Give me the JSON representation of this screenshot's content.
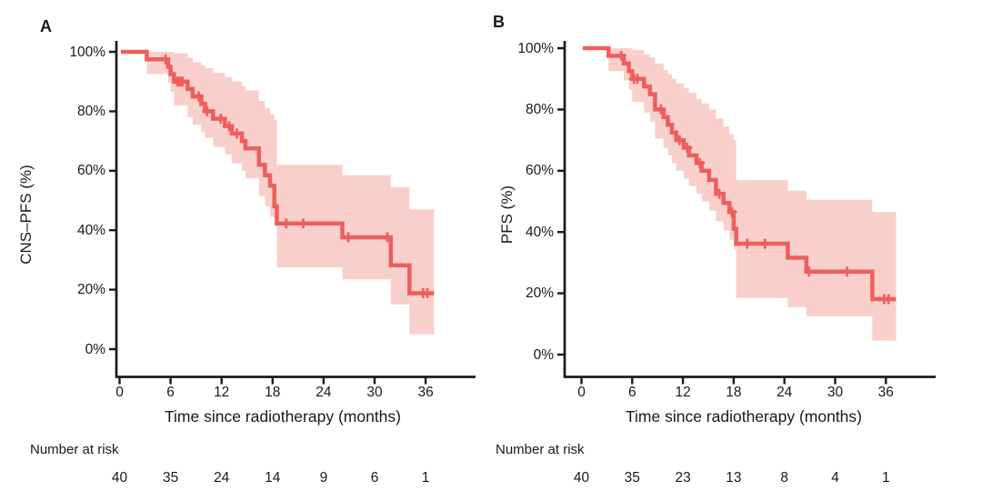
{
  "figure": {
    "background": "#ffffff",
    "text_color": "#1a1a1a",
    "panels": [
      {
        "letter": "A"
      },
      {
        "letter": "B"
      }
    ]
  },
  "colors": {
    "curve": "#ee5e5b",
    "confidence_band": "#f9cfcc",
    "axis": "#1a1a1a"
  },
  "chart_data": [
    {
      "type": "line",
      "subtype": "kaplan-meier-step",
      "panel": "A",
      "ylabel": "CNS–PFS (%)",
      "xlabel": "Time since radiotherapy (months)",
      "xlim": [
        0,
        42
      ],
      "ylim": [
        0,
        100
      ],
      "x_ticks": [
        0,
        6,
        12,
        18,
        24,
        30,
        36
      ],
      "y_tick_values": [
        100,
        80,
        60,
        40,
        20,
        0
      ],
      "y_tick_labels": [
        "100%",
        "80%",
        "60%",
        "40%",
        "20%",
        "0%"
      ],
      "grid": false,
      "legend": "none",
      "series": [
        {
          "name": "CNS-PFS",
          "color": "#ee5e5b",
          "band_color": "#f9cfcc",
          "steps": [
            [
              0.15,
              100
            ],
            [
              3.2,
              100
            ],
            [
              3.2,
              97.5
            ],
            [
              5.7,
              97.5
            ],
            [
              5.7,
              95
            ],
            [
              6.0,
              95
            ],
            [
              6.0,
              92.5
            ],
            [
              6.4,
              92.5
            ],
            [
              6.4,
              90
            ],
            [
              8.0,
              90
            ],
            [
              8.0,
              87.5
            ],
            [
              8.6,
              87.5
            ],
            [
              8.6,
              85
            ],
            [
              9.6,
              85
            ],
            [
              9.6,
              82.5
            ],
            [
              10.05,
              82.5
            ],
            [
              10.05,
              80
            ],
            [
              11.0,
              80
            ],
            [
              11.0,
              77.5
            ],
            [
              12.4,
              77.5
            ],
            [
              12.4,
              75
            ],
            [
              13.2,
              75
            ],
            [
              13.2,
              72.5
            ],
            [
              14.4,
              72.5
            ],
            [
              14.4,
              70
            ],
            [
              14.8,
              70
            ],
            [
              14.8,
              67.5
            ],
            [
              16.4,
              67.5
            ],
            [
              16.4,
              62
            ],
            [
              17.1,
              62
            ],
            [
              17.1,
              58.5
            ],
            [
              17.7,
              58.5
            ],
            [
              17.7,
              55
            ],
            [
              18.2,
              55
            ],
            [
              18.2,
              48
            ],
            [
              18.5,
              48
            ],
            [
              18.5,
              42.3
            ],
            [
              26.2,
              42.3
            ],
            [
              26.2,
              37.6
            ],
            [
              31.9,
              37.6
            ],
            [
              31.9,
              28.2
            ],
            [
              34.1,
              28.2
            ],
            [
              34.1,
              18.8
            ],
            [
              37.0,
              18.8
            ]
          ],
          "censor_marks": [
            [
              5.4,
              97.5
            ],
            [
              6.8,
              90
            ],
            [
              7.1,
              90
            ],
            [
              7.4,
              90
            ],
            [
              9.3,
              85
            ],
            [
              10.3,
              80
            ],
            [
              11.9,
              77.5
            ],
            [
              12.9,
              75
            ],
            [
              13.8,
              72.5
            ],
            [
              19.6,
              42.3
            ],
            [
              21.6,
              42.3
            ],
            [
              26.9,
              37.6
            ],
            [
              31.5,
              37.6
            ],
            [
              35.7,
              18.8
            ],
            [
              36.2,
              18.8
            ]
          ],
          "ci_band": [
            [
              0.15,
              100,
              100
            ],
            [
              3.2,
              92.5,
              100
            ],
            [
              5.7,
              89.5,
              100
            ],
            [
              6.0,
              86.5,
              100
            ],
            [
              6.4,
              82,
              99.5
            ],
            [
              8.0,
              78,
              98
            ],
            [
              8.6,
              75.5,
              96.5
            ],
            [
              9.6,
              73,
              95.5
            ],
            [
              10.05,
              71,
              94.5
            ],
            [
              11.0,
              68,
              93
            ],
            [
              12.4,
              65.5,
              91.5
            ],
            [
              13.2,
              62.5,
              90
            ],
            [
              14.4,
              60,
              88.5
            ],
            [
              14.8,
              57.5,
              87
            ],
            [
              16.4,
              51.5,
              83.5
            ],
            [
              17.1,
              48,
              81
            ],
            [
              17.7,
              44.5,
              79
            ],
            [
              18.2,
              41.5,
              77
            ],
            [
              18.5,
              27.5,
              62
            ],
            [
              26.2,
              23.5,
              58.5
            ],
            [
              31.9,
              15,
              54.5
            ],
            [
              34.1,
              5,
              47
            ],
            [
              37.0,
              5,
              47
            ]
          ]
        }
      ],
      "number_at_risk": {
        "label": "Number at risk",
        "times": [
          0,
          6,
          12,
          18,
          24,
          30,
          36
        ],
        "counts": [
          "40",
          "35",
          "24",
          "14",
          "9",
          "6",
          "1"
        ]
      }
    },
    {
      "type": "line",
      "subtype": "kaplan-meier-step",
      "panel": "B",
      "ylabel": "PFS (%)",
      "xlabel": "Time since radiotherapy (months)",
      "xlim": [
        0,
        42
      ],
      "ylim": [
        0,
        100
      ],
      "x_ticks": [
        0,
        6,
        12,
        18,
        24,
        30,
        36
      ],
      "y_tick_values": [
        100,
        80,
        60,
        40,
        20,
        0
      ],
      "y_tick_labels": [
        "100%",
        "80%",
        "60%",
        "40%",
        "20%",
        "0%"
      ],
      "grid": false,
      "legend": "none",
      "series": [
        {
          "name": "PFS",
          "color": "#ee5e5b",
          "band_color": "#f9cfcc",
          "steps": [
            [
              0.15,
              100
            ],
            [
              3.2,
              100
            ],
            [
              3.2,
              97.5
            ],
            [
              5.0,
              97.5
            ],
            [
              5.0,
              95
            ],
            [
              5.6,
              95
            ],
            [
              5.6,
              92.5
            ],
            [
              6.0,
              92.5
            ],
            [
              6.0,
              90
            ],
            [
              7.4,
              90
            ],
            [
              7.4,
              87.5
            ],
            [
              8.1,
              87.5
            ],
            [
              8.1,
              85
            ],
            [
              8.7,
              85
            ],
            [
              8.7,
              80
            ],
            [
              9.7,
              80
            ],
            [
              9.7,
              77.5
            ],
            [
              10.2,
              77.5
            ],
            [
              10.2,
              75
            ],
            [
              10.7,
              75
            ],
            [
              10.7,
              72.5
            ],
            [
              11.2,
              72.5
            ],
            [
              11.2,
              70
            ],
            [
              12.1,
              70
            ],
            [
              12.1,
              67.5
            ],
            [
              12.7,
              67.5
            ],
            [
              12.7,
              65
            ],
            [
              13.6,
              65
            ],
            [
              13.6,
              62.5
            ],
            [
              14.2,
              62.5
            ],
            [
              14.2,
              60
            ],
            [
              15.1,
              60
            ],
            [
              15.1,
              57
            ],
            [
              15.9,
              57
            ],
            [
              15.9,
              52.5
            ],
            [
              16.8,
              52.5
            ],
            [
              16.8,
              49.5
            ],
            [
              17.5,
              49.5
            ],
            [
              17.5,
              46.5
            ],
            [
              18.0,
              46.5
            ],
            [
              18.0,
              41
            ],
            [
              18.3,
              41
            ],
            [
              18.3,
              36.2
            ],
            [
              24.4,
              36.2
            ],
            [
              24.4,
              31.6
            ],
            [
              26.6,
              31.6
            ],
            [
              26.6,
              27.1
            ],
            [
              34.4,
              27.1
            ],
            [
              34.4,
              18.1
            ],
            [
              37.2,
              18.1
            ]
          ],
          "censor_marks": [
            [
              4.7,
              97.5
            ],
            [
              6.2,
              90
            ],
            [
              6.6,
              90
            ],
            [
              9.4,
              80
            ],
            [
              11.6,
              70
            ],
            [
              12.5,
              67.5
            ],
            [
              14.0,
              62.5
            ],
            [
              16.3,
              52.5
            ],
            [
              17.8,
              46.5
            ],
            [
              19.6,
              36.2
            ],
            [
              21.7,
              36.2
            ],
            [
              26.9,
              27.1
            ],
            [
              31.4,
              27.1
            ],
            [
              35.8,
              18.1
            ],
            [
              36.3,
              18.1
            ]
          ],
          "ci_band": [
            [
              0.15,
              100,
              100
            ],
            [
              3.2,
              92.5,
              100
            ],
            [
              5.0,
              89.5,
              100
            ],
            [
              5.6,
              86.5,
              100
            ],
            [
              6.0,
              82.5,
              99.5
            ],
            [
              7.4,
              79,
              98
            ],
            [
              8.1,
              76,
              97
            ],
            [
              8.7,
              70.5,
              95
            ],
            [
              9.7,
              67.5,
              93
            ],
            [
              10.2,
              65,
              91.5
            ],
            [
              10.7,
              62.5,
              90
            ],
            [
              11.2,
              60,
              88.5
            ],
            [
              12.1,
              57.5,
              87
            ],
            [
              12.7,
              55,
              85.5
            ],
            [
              13.6,
              52.5,
              83.5
            ],
            [
              14.2,
              50,
              82
            ],
            [
              15.1,
              47,
              80
            ],
            [
              15.9,
              43.5,
              77
            ],
            [
              16.8,
              40.5,
              74.5
            ],
            [
              17.5,
              37.5,
              72
            ],
            [
              18.0,
              34.5,
              70
            ],
            [
              18.3,
              18.5,
              57
            ],
            [
              24.4,
              15.5,
              53.5
            ],
            [
              26.6,
              12.5,
              50.5
            ],
            [
              34.4,
              4.5,
              46.5
            ],
            [
              37.2,
              4.5,
              46.5
            ]
          ]
        }
      ],
      "number_at_risk": {
        "label": "Number at risk",
        "times": [
          0,
          6,
          12,
          18,
          24,
          30,
          36
        ],
        "counts": [
          "40",
          "35",
          "23",
          "13",
          "8",
          "4",
          "1"
        ]
      }
    }
  ]
}
